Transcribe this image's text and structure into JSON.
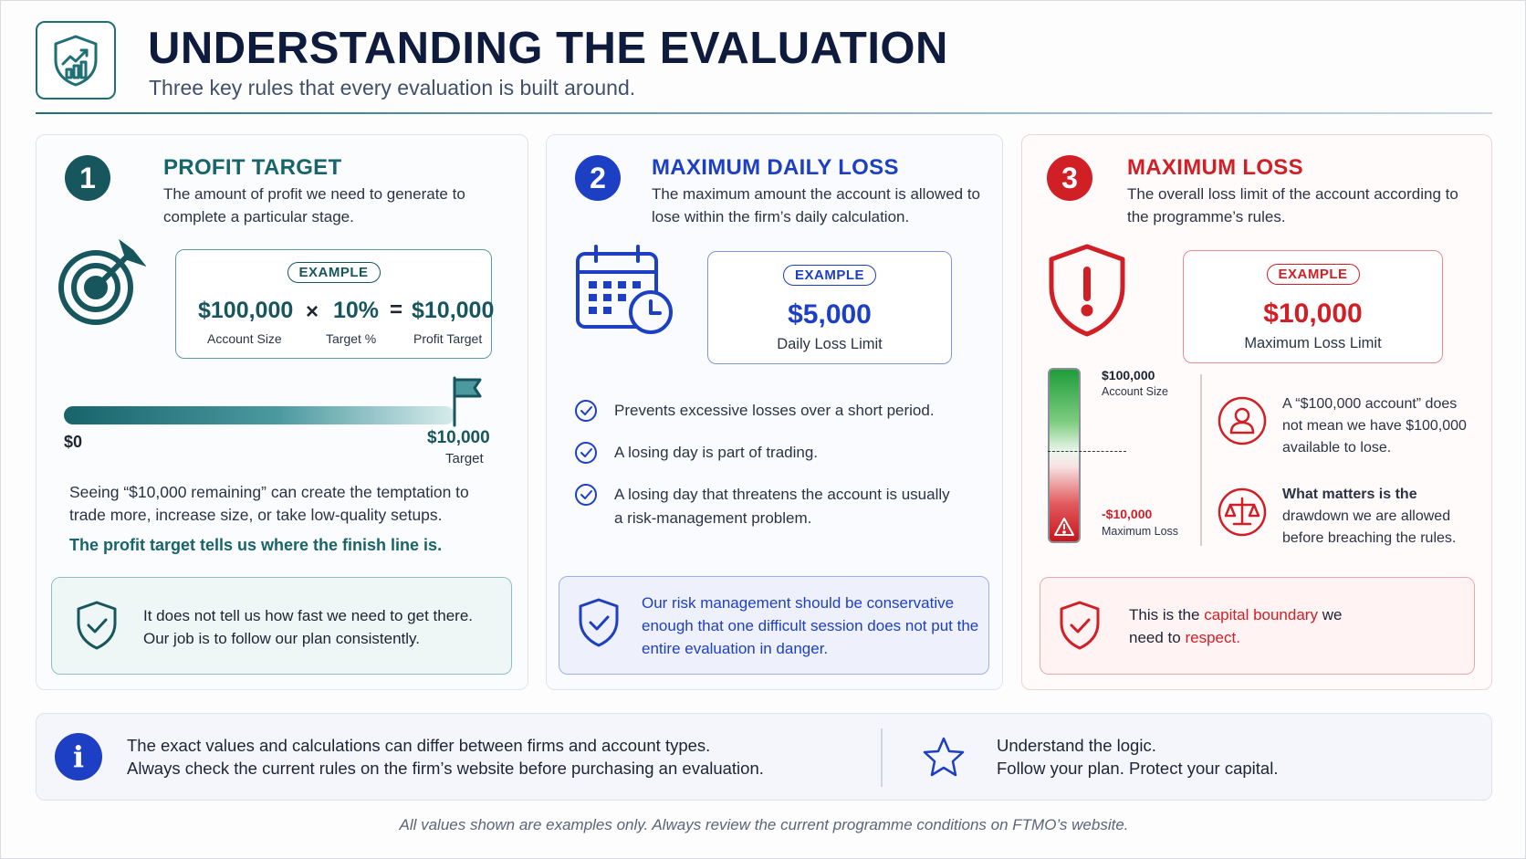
{
  "header": {
    "title": "UNDERSTANDING THE EVALUATION",
    "subtitle": "Three key rules that every evaluation is built around.",
    "logo_icon": "shield-chart-icon"
  },
  "colors": {
    "teal": "#17646b",
    "blue": "#1d3fc4",
    "red": "#d11f26"
  },
  "cards": {
    "profit": {
      "number": "1",
      "title": "PROFIT TARGET",
      "desc": "The amount of profit we need to generate to complete a particular stage.",
      "icon": "target-icon",
      "example_label": "EXAMPLE",
      "eq": {
        "account_value": "$100,000",
        "account_label": "Account Size",
        "times": "×",
        "pct_value": "10%",
        "pct_label": "Target %",
        "equals": "=",
        "target_value": "$10,000",
        "target_label": "Profit Target"
      },
      "progress": {
        "start": "$0",
        "end_value": "$10,000",
        "end_label": "Target",
        "icon": "flag-icon"
      },
      "body": "Seeing “$10,000 remaining” can create the temptation to trade more, increase size, or take low-quality setups.",
      "highlight": "The profit target tells us where the finish line is.",
      "note": {
        "icon": "shield-check-icon",
        "text": "It does not tell us how fast we need to get there. Our job is to follow our plan consistently."
      }
    },
    "daily": {
      "number": "2",
      "title": "MAXIMUM DAILY LOSS",
      "desc": "The maximum amount the account is allowed to lose within the firm’s daily calculation.",
      "icon": "calendar-clock-icon",
      "example_label": "EXAMPLE",
      "value": "$5,000",
      "value_label": "Daily Loss Limit",
      "checks": [
        "Prevents excessive losses over a short period.",
        "A losing day is part of trading.",
        "A losing day that threatens the account is usually a risk-management problem."
      ],
      "note": {
        "icon": "shield-check-icon",
        "text": "Our risk management should be conservative enough that one difficult session does not put the entire evaluation in danger."
      }
    },
    "maxloss": {
      "number": "3",
      "title": "MAXIMUM LOSS",
      "desc": "The overall loss limit of the account according to the programme’s rules.",
      "icon": "shield-alert-icon",
      "example_label": "EXAMPLE",
      "value": "$10,000",
      "value_label": "Maximum Loss Limit",
      "gauge": {
        "top_value": "$100,000",
        "top_label": "Account Size",
        "bottom_value": "-$10,000",
        "bottom_label": "Maximum Loss",
        "warning_icon": "warning-icon"
      },
      "points": [
        {
          "icon": "user-icon",
          "text": "A “$100,000 account” does not mean we have $100,000 available to lose."
        },
        {
          "icon": "scales-icon",
          "text_bold": "What matters is the",
          "text": "drawdown we are allowed before breaching the rules."
        }
      ],
      "note": {
        "icon": "shield-check-icon",
        "pre": "This is the ",
        "em1": "capital boundary",
        "mid": " we need to ",
        "em2": "respect."
      }
    }
  },
  "info": {
    "icon": "info-icon",
    "line1": "The exact values and calculations can differ between firms and account types.",
    "line2": "Always check the current rules on the firm’s website before purchasing an evaluation.",
    "star_icon": "star-icon",
    "line3": "Understand the logic.",
    "line4": "Follow your plan. Protect your capital."
  },
  "disclaimer": "All values shown are examples only. Always review the current programme conditions on FTMO’s website."
}
